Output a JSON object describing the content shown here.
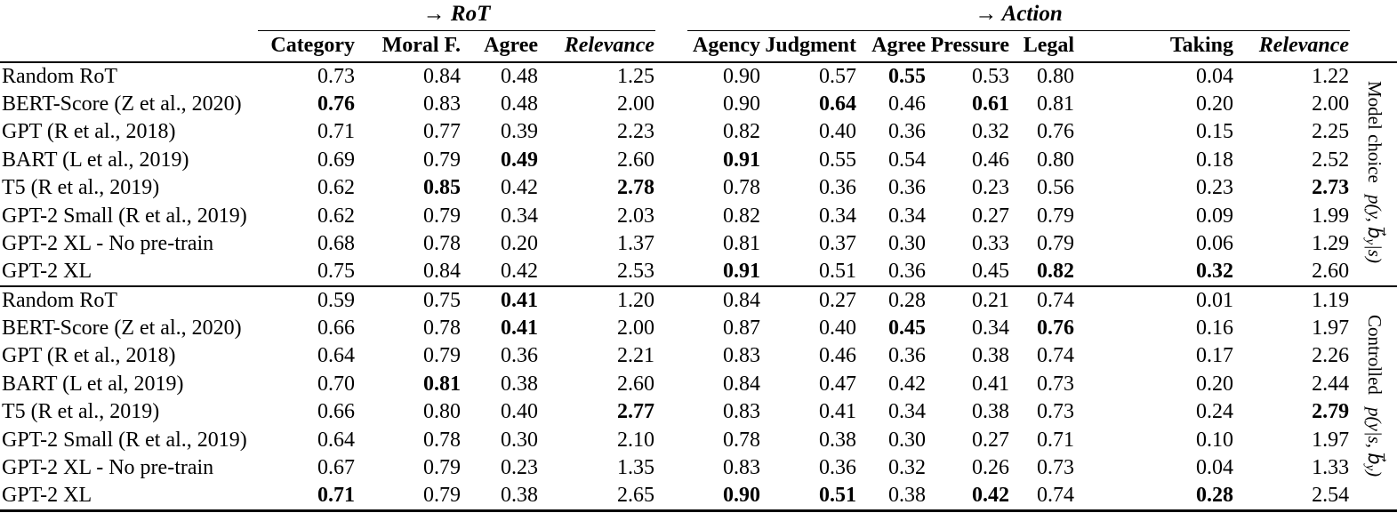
{
  "page": {
    "background": "#ffffff",
    "text_color": "#000000",
    "rule_color": "#000000"
  },
  "table": {
    "groups": [
      {
        "label": "→ RoT",
        "columns": [
          {
            "label": "Category"
          },
          {
            "label": "Moral F."
          },
          {
            "label": "Agree"
          },
          {
            "label": "Relevance",
            "italic": true
          }
        ]
      },
      {
        "label": "→ Action",
        "columns": [
          {
            "label": "Agency"
          },
          {
            "label": "Judgment"
          },
          {
            "label": "Agree"
          },
          {
            "label": "Pressure"
          },
          {
            "label": "Legal"
          },
          {
            "label": "Taking"
          },
          {
            "label": "Relevance",
            "italic": true
          }
        ]
      }
    ],
    "sections": [
      {
        "side_label": {
          "text": "Model choice",
          "math_pre": "p(y, b⃗",
          "math_sub": "y",
          "math_post": "|s)"
        },
        "rows": [
          {
            "label": "Random RoT",
            "rot": [
              "0.73",
              "0.84",
              "0.48",
              "1.25"
            ],
            "action": [
              "0.90",
              "0.57",
              {
                "v": "0.55",
                "bold": true
              },
              "0.53",
              "0.80",
              "0.04",
              "1.22"
            ]
          },
          {
            "label": "BERT-Score (Z et al., 2020)",
            "rot": [
              {
                "v": "0.76",
                "bold": true
              },
              "0.83",
              "0.48",
              "2.00"
            ],
            "action": [
              "0.90",
              {
                "v": "0.64",
                "bold": true
              },
              "0.46",
              {
                "v": "0.61",
                "bold": true
              },
              "0.81",
              "0.20",
              "2.00"
            ]
          },
          {
            "label": "GPT (R et al., 2018)",
            "rot": [
              "0.71",
              "0.77",
              "0.39",
              "2.23"
            ],
            "action": [
              "0.82",
              "0.40",
              "0.36",
              "0.32",
              "0.76",
              "0.15",
              "2.25"
            ]
          },
          {
            "label": "BART (L et al., 2019)",
            "rot": [
              "0.69",
              "0.79",
              {
                "v": "0.49",
                "bold": true
              },
              "2.60"
            ],
            "action": [
              {
                "v": "0.91",
                "bold": true
              },
              "0.55",
              "0.54",
              "0.46",
              "0.80",
              "0.18",
              "2.52"
            ]
          },
          {
            "label": "T5 (R et al., 2019)",
            "rot": [
              "0.62",
              {
                "v": "0.85",
                "bold": true
              },
              "0.42",
              {
                "v": "2.78",
                "bold": true
              }
            ],
            "action": [
              "0.78",
              "0.36",
              "0.36",
              "0.23",
              "0.56",
              "0.23",
              {
                "v": "2.73",
                "bold": true
              }
            ]
          },
          {
            "label": "GPT-2 Small (R et al., 2019)",
            "rot": [
              "0.62",
              "0.79",
              "0.34",
              "2.03"
            ],
            "action": [
              "0.82",
              "0.34",
              "0.34",
              "0.27",
              "0.79",
              "0.09",
              "1.99"
            ]
          },
          {
            "label": "GPT-2 XL - No pre-train",
            "rot": [
              "0.68",
              "0.78",
              "0.20",
              "1.37"
            ],
            "action": [
              "0.81",
              "0.37",
              "0.30",
              "0.33",
              "0.79",
              "0.06",
              "1.29"
            ]
          },
          {
            "label": "GPT-2 XL",
            "rot": [
              "0.75",
              "0.84",
              "0.42",
              "2.53"
            ],
            "action": [
              {
                "v": "0.91",
                "bold": true
              },
              "0.51",
              "0.36",
              "0.45",
              {
                "v": "0.82",
                "bold": true
              },
              {
                "v": "0.32",
                "bold": true
              },
              "2.60"
            ]
          }
        ]
      },
      {
        "side_label": {
          "text": "Controlled",
          "math_pre": "p(y|s, b⃗",
          "math_sub": "y",
          "math_post": ")"
        },
        "rows": [
          {
            "label": "Random RoT",
            "rot": [
              "0.59",
              "0.75",
              {
                "v": "0.41",
                "bold": true
              },
              "1.20"
            ],
            "action": [
              "0.84",
              "0.27",
              "0.28",
              "0.21",
              "0.74",
              "0.01",
              "1.19"
            ]
          },
          {
            "label": "BERT-Score (Z et al., 2020)",
            "rot": [
              "0.66",
              "0.78",
              {
                "v": "0.41",
                "bold": true
              },
              "2.00"
            ],
            "action": [
              "0.87",
              "0.40",
              {
                "v": "0.45",
                "bold": true
              },
              "0.34",
              {
                "v": "0.76",
                "bold": true
              },
              "0.16",
              "1.97"
            ]
          },
          {
            "label": "GPT (R et al., 2018)",
            "rot": [
              "0.64",
              "0.79",
              "0.36",
              "2.21"
            ],
            "action": [
              "0.83",
              "0.46",
              "0.36",
              "0.38",
              "0.74",
              "0.17",
              "2.26"
            ]
          },
          {
            "label": "BART (L et al, 2019)",
            "rot": [
              "0.70",
              {
                "v": "0.81",
                "bold": true
              },
              "0.38",
              "2.60"
            ],
            "action": [
              "0.84",
              "0.47",
              "0.42",
              "0.41",
              "0.73",
              "0.20",
              "2.44"
            ]
          },
          {
            "label": "T5 (R et al., 2019)",
            "rot": [
              "0.66",
              "0.80",
              "0.40",
              {
                "v": "2.77",
                "bold": true
              }
            ],
            "action": [
              "0.83",
              "0.41",
              "0.34",
              "0.38",
              "0.73",
              "0.24",
              {
                "v": "2.79",
                "bold": true
              }
            ]
          },
          {
            "label": "GPT-2 Small (R et al., 2019)",
            "rot": [
              "0.64",
              "0.78",
              "0.30",
              "2.10"
            ],
            "action": [
              "0.78",
              "0.38",
              "0.30",
              "0.27",
              "0.71",
              "0.10",
              "1.97"
            ]
          },
          {
            "label": "GPT-2 XL - No pre-train",
            "rot": [
              "0.67",
              "0.79",
              "0.23",
              "1.35"
            ],
            "action": [
              "0.83",
              "0.36",
              "0.32",
              "0.26",
              "0.73",
              "0.04",
              "1.33"
            ]
          },
          {
            "label": "GPT-2 XL",
            "rot": [
              {
                "v": "0.71",
                "bold": true
              },
              "0.79",
              "0.38",
              "2.65"
            ],
            "action": [
              {
                "v": "0.90",
                "bold": true
              },
              {
                "v": "0.51",
                "bold": true
              },
              "0.38",
              {
                "v": "0.42",
                "bold": true
              },
              "0.74",
              {
                "v": "0.28",
                "bold": true
              },
              "2.54"
            ]
          }
        ]
      }
    ]
  }
}
